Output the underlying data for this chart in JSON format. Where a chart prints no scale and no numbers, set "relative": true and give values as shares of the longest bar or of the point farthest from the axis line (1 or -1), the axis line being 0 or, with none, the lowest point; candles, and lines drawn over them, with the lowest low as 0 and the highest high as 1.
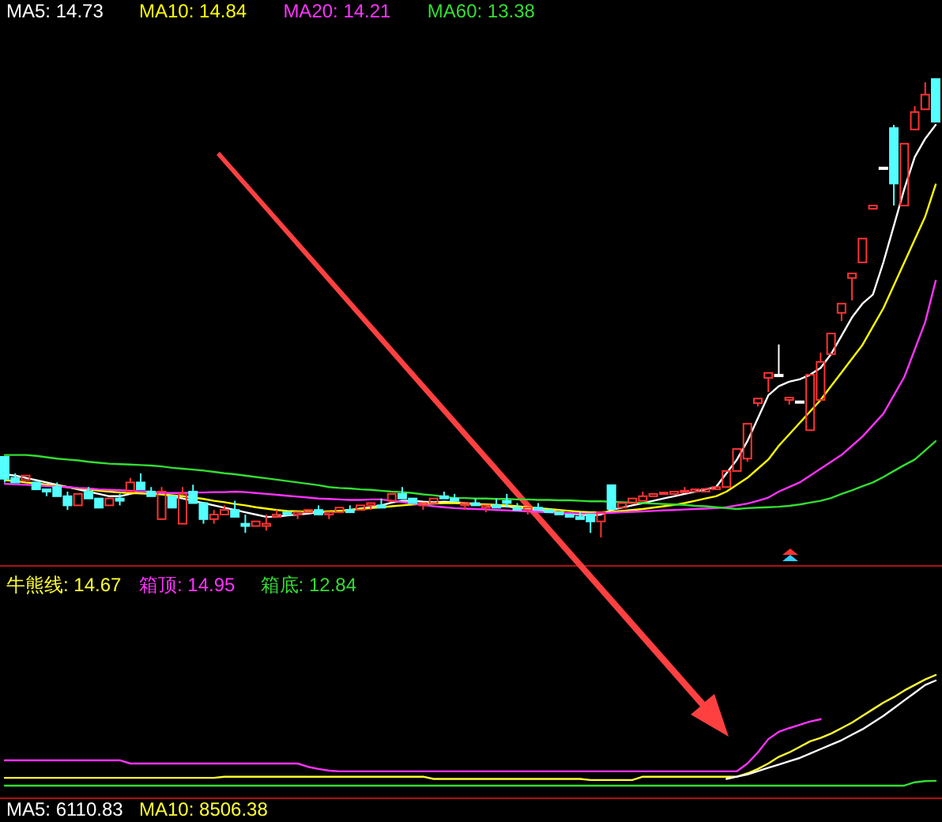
{
  "chart_data": [
    {
      "type": "candlestick",
      "relative": true,
      "legend": "top left",
      "categories": [
        null,
        null,
        null,
        null,
        null,
        null,
        null,
        null,
        null,
        null,
        null,
        null,
        null,
        null,
        null,
        null,
        null,
        null,
        null,
        null,
        null,
        null,
        null,
        null,
        null,
        null,
        null,
        null,
        null,
        null,
        null,
        null,
        null,
        null,
        null,
        null,
        null,
        null,
        null,
        null,
        null,
        null,
        null,
        null,
        null,
        null,
        null,
        null,
        null,
        null,
        null,
        null,
        null,
        null,
        null,
        null,
        null,
        null,
        null,
        null,
        null,
        null,
        null,
        null,
        null,
        null,
        null,
        null,
        null,
        null,
        null,
        null,
        null,
        null,
        null,
        null,
        null,
        null,
        null,
        null,
        null,
        null,
        null,
        null,
        null,
        null,
        null,
        null,
        null,
        null
      ],
      "ohlc": [
        [
          0.176,
          0.18,
          0.12,
          0.128
        ],
        [
          0.13,
          0.14,
          0.115,
          0.12
        ],
        [
          0.125,
          0.14,
          0.12,
          0.135
        ],
        [
          0.12,
          0.125,
          0.1,
          0.105
        ],
        [
          0.105,
          0.11,
          0.09,
          0.1
        ],
        [
          0.11,
          0.12,
          0.085,
          0.09
        ],
        [
          0.09,
          0.1,
          0.06,
          0.07
        ],
        [
          0.07,
          0.1,
          0.065,
          0.095
        ],
        [
          0.1,
          0.11,
          0.08,
          0.085
        ],
        [
          0.085,
          0.09,
          0.06,
          0.065
        ],
        [
          0.07,
          0.09,
          0.065,
          0.085
        ],
        [
          0.085,
          0.095,
          0.07,
          0.08
        ],
        [
          0.1,
          0.13,
          0.095,
          0.12
        ],
        [
          0.12,
          0.14,
          0.1,
          0.105
        ],
        [
          0.1,
          0.11,
          0.085,
          0.09
        ],
        [
          0.04,
          0.11,
          0.035,
          0.1
        ],
        [
          0.09,
          0.095,
          0.06,
          0.065
        ],
        [
          0.03,
          0.11,
          0.025,
          0.095
        ],
        [
          0.1,
          0.115,
          0.07,
          0.075
        ],
        [
          0.075,
          0.08,
          0.03,
          0.04
        ],
        [
          0.04,
          0.06,
          0.03,
          0.05
        ],
        [
          0.05,
          0.07,
          0.045,
          0.06
        ],
        [
          0.06,
          0.08,
          0.04,
          0.045
        ],
        [
          0.03,
          0.05,
          0.01,
          0.025
        ],
        [
          0.025,
          0.04,
          0.02,
          0.035
        ],
        [
          0.025,
          0.05,
          0.015,
          0.03
        ],
        [
          0.045,
          0.06,
          0.04,
          0.05
        ],
        [
          0.055,
          0.06,
          0.045,
          0.05
        ],
        [
          0.05,
          0.06,
          0.04,
          0.055
        ],
        [
          0.055,
          0.065,
          0.05,
          0.06
        ],
        [
          0.06,
          0.07,
          0.045,
          0.05
        ],
        [
          0.05,
          0.06,
          0.04,
          0.055
        ],
        [
          0.055,
          0.07,
          0.05,
          0.065
        ],
        [
          0.06,
          0.07,
          0.05,
          0.055
        ],
        [
          0.06,
          0.075,
          0.055,
          0.07
        ],
        [
          0.07,
          0.08,
          0.06,
          0.075
        ],
        [
          0.07,
          0.085,
          0.06,
          0.065
        ],
        [
          0.08,
          0.1,
          0.075,
          0.095
        ],
        [
          0.095,
          0.11,
          0.08,
          0.085
        ],
        [
          0.085,
          0.09,
          0.07,
          0.075
        ],
        [
          0.07,
          0.08,
          0.06,
          0.075
        ],
        [
          0.075,
          0.09,
          0.07,
          0.085
        ],
        [
          0.09,
          0.1,
          0.08,
          0.085
        ],
        [
          0.085,
          0.095,
          0.075,
          0.08
        ],
        [
          0.07,
          0.08,
          0.06,
          0.075
        ],
        [
          0.075,
          0.085,
          0.065,
          0.07
        ],
        [
          0.065,
          0.075,
          0.055,
          0.07
        ],
        [
          0.07,
          0.085,
          0.06,
          0.065
        ],
        [
          0.08,
          0.095,
          0.065,
          0.075
        ],
        [
          0.065,
          0.075,
          0.055,
          0.06
        ],
        [
          0.06,
          0.07,
          0.05,
          0.065
        ],
        [
          0.065,
          0.075,
          0.055,
          0.06
        ],
        [
          0.06,
          0.065,
          0.05,
          0.055
        ],
        [
          0.055,
          0.06,
          0.045,
          0.05
        ],
        [
          0.05,
          0.055,
          0.04,
          0.045
        ],
        [
          0.045,
          0.055,
          0.035,
          0.04
        ],
        [
          0.05,
          0.055,
          0.01,
          0.035
        ],
        [
          0.035,
          0.06,
          0.0,
          0.055
        ],
        [
          0.114,
          0.117,
          0.06,
          0.062
        ],
        [
          0.065,
          0.08,
          0.06,
          0.075
        ],
        [
          0.075,
          0.09,
          0.07,
          0.085
        ],
        [
          0.08,
          0.1,
          0.075,
          0.09
        ],
        [
          0.09,
          0.1,
          0.085,
          0.095
        ],
        [
          0.095,
          0.1,
          0.09,
          0.098
        ],
        [
          0.095,
          0.1,
          0.09,
          0.1
        ],
        [
          0.1,
          0.11,
          0.095,
          0.102
        ],
        [
          0.1,
          0.11,
          0.095,
          0.105
        ],
        [
          0.1,
          0.11,
          0.098,
          0.106
        ],
        [
          0.105,
          0.115,
          0.1,
          0.11
        ],
        [
          0.11,
          0.145,
          0.105,
          0.145
        ],
        [
          0.145,
          0.195,
          0.14,
          0.193
        ],
        [
          0.172,
          0.25,
          0.165,
          0.248
        ],
        [
          0.293,
          0.303,
          0.286,
          0.303
        ],
        [
          0.348,
          0.359,
          0.317,
          0.359
        ],
        [
          0.355,
          0.421,
          0.355,
          0.355
        ],
        [
          0.3,
          0.31,
          0.29,
          0.305
        ],
        [
          0.297,
          0.3,
          0.295,
          0.297
        ],
        [
          0.234,
          0.355,
          0.234,
          0.355
        ],
        [
          0.3,
          0.403,
          0.3,
          0.383
        ],
        [
          0.4,
          0.445,
          0.4,
          0.445
        ],
        [
          0.49,
          0.51,
          0.472,
          0.51
        ],
        [
          0.566,
          0.576,
          0.517,
          0.576
        ],
        [
          0.6,
          0.652,
          0.6,
          0.652
        ],
        [
          0.717,
          0.728,
          0.717,
          0.724
        ],
        [
          0.807,
          0.81,
          0.805,
          0.807
        ],
        [
          0.893,
          0.9,
          0.724,
          0.772
        ],
        [
          0.724,
          0.86,
          0.724,
          0.859
        ],
        [
          0.89,
          0.941,
          0.89,
          0.928
        ],
        [
          0.934,
          0.993,
          0.934,
          0.966
        ],
        [
          1,
          1,
          0.907,
          0.907
        ]
      ],
      "series": [
        {
          "type": "line",
          "name": "MA5: 14.73",
          "color": "#ffffff",
          "values": [
            0.138,
            0.135,
            0.13,
            0.125,
            0.12,
            0.115,
            0.11,
            0.105,
            0.1,
            0.095,
            0.09,
            0.09,
            0.095,
            0.1,
            0.1,
            0.095,
            0.09,
            0.085,
            0.08,
            0.075,
            0.07,
            0.065,
            0.06,
            0.055,
            0.05,
            0.045,
            0.045,
            0.048,
            0.05,
            0.052,
            0.055,
            0.055,
            0.058,
            0.06,
            0.063,
            0.066,
            0.07,
            0.076,
            0.08,
            0.08,
            0.078,
            0.077,
            0.078,
            0.077,
            0.075,
            0.073,
            0.07,
            0.068,
            0.068,
            0.065,
            0.063,
            0.06,
            0.058,
            0.055,
            0.052,
            0.05,
            0.048,
            0.05,
            0.06,
            0.065,
            0.07,
            0.075,
            0.08,
            0.085,
            0.09,
            0.095,
            0.1,
            0.105,
            0.11,
            0.14,
            0.17,
            0.21,
            0.26,
            0.31,
            0.33,
            0.34,
            0.345,
            0.355,
            0.37,
            0.4,
            0.44,
            0.48,
            0.51,
            0.53,
            0.6,
            0.68,
            0.76,
            0.83,
            0.87,
            0.9
          ]
        },
        {
          "type": "line",
          "name": "MA10: 14.84",
          "color": "#ffff00",
          "values": [
            0.125,
            0.123,
            0.12,
            0.118,
            0.115,
            0.112,
            0.11,
            0.107,
            0.105,
            0.102,
            0.1,
            0.098,
            0.097,
            0.096,
            0.095,
            0.094,
            0.092,
            0.09,
            0.087,
            0.084,
            0.08,
            0.077,
            0.073,
            0.07,
            0.066,
            0.063,
            0.06,
            0.058,
            0.057,
            0.056,
            0.056,
            0.057,
            0.058,
            0.06,
            0.062,
            0.064,
            0.066,
            0.068,
            0.07,
            0.072,
            0.073,
            0.074,
            0.075,
            0.075,
            0.074,
            0.073,
            0.072,
            0.071,
            0.07,
            0.068,
            0.066,
            0.064,
            0.062,
            0.06,
            0.058,
            0.056,
            0.055,
            0.055,
            0.056,
            0.058,
            0.06,
            0.062,
            0.065,
            0.068,
            0.071,
            0.075,
            0.08,
            0.085,
            0.09,
            0.1,
            0.115,
            0.13,
            0.15,
            0.17,
            0.2,
            0.225,
            0.25,
            0.275,
            0.3,
            0.33,
            0.36,
            0.39,
            0.42,
            0.46,
            0.5,
            0.55,
            0.6,
            0.65,
            0.7,
            0.77
          ]
        },
        {
          "type": "line",
          "name": "MA20: 14.21",
          "color": "#ff33ff",
          "values": [
            0.117,
            0.116,
            0.115,
            0.114,
            0.112,
            0.111,
            0.11,
            0.108,
            0.107,
            0.105,
            0.104,
            0.103,
            0.102,
            0.1,
            0.099,
            0.097,
            0.097,
            0.097,
            0.098,
            0.098,
            0.099,
            0.099,
            0.1,
            0.099,
            0.097,
            0.095,
            0.093,
            0.091,
            0.089,
            0.087,
            0.085,
            0.084,
            0.083,
            0.082,
            0.082,
            0.083,
            0.083,
            0.08,
            0.077,
            0.074,
            0.071,
            0.068,
            0.066,
            0.064,
            0.063,
            0.062,
            0.061,
            0.06,
            0.059,
            0.058,
            0.057,
            0.056,
            0.055,
            0.054,
            0.053,
            0.052,
            0.052,
            0.053,
            0.054,
            0.055,
            0.056,
            0.057,
            0.058,
            0.059,
            0.06,
            0.061,
            0.062,
            0.063,
            0.064,
            0.066,
            0.07,
            0.074,
            0.08,
            0.087,
            0.1,
            0.11,
            0.12,
            0.135,
            0.15,
            0.165,
            0.18,
            0.2,
            0.22,
            0.245,
            0.27,
            0.31,
            0.35,
            0.41,
            0.47,
            0.56
          ]
        },
        {
          "type": "line",
          "name": "MA60: 13.38",
          "color": "#33dd33",
          "values": [
            0.18,
            0.18,
            0.18,
            0.178,
            0.175,
            0.172,
            0.17,
            0.168,
            0.165,
            0.163,
            0.161,
            0.16,
            0.159,
            0.158,
            0.157,
            0.155,
            0.152,
            0.15,
            0.148,
            0.146,
            0.143,
            0.14,
            0.138,
            0.135,
            0.132,
            0.129,
            0.126,
            0.123,
            0.12,
            0.117,
            0.114,
            0.11,
            0.108,
            0.107,
            0.105,
            0.104,
            0.102,
            0.1,
            0.099,
            0.097,
            0.094,
            0.092,
            0.089,
            0.086,
            0.086,
            0.085,
            0.085,
            0.084,
            0.084,
            0.083,
            0.083,
            0.082,
            0.082,
            0.081,
            0.081,
            0.08,
            0.079,
            0.079,
            0.078,
            0.077,
            0.076,
            0.075,
            0.074,
            0.073,
            0.072,
            0.071,
            0.069,
            0.068,
            0.066,
            0.064,
            0.062,
            0.064,
            0.065,
            0.066,
            0.067,
            0.069,
            0.072,
            0.076,
            0.08,
            0.086,
            0.095,
            0.103,
            0.112,
            0.12,
            0.132,
            0.145,
            0.158,
            0.17,
            0.19,
            0.21
          ]
        }
      ]
    },
    {
      "type": "line",
      "relative": true,
      "legend": "top left",
      "categories": [
        null,
        null,
        null,
        null,
        null,
        null,
        null,
        null,
        null,
        null,
        null,
        null,
        null,
        null,
        null,
        null,
        null,
        null,
        null,
        null,
        null,
        null,
        null,
        null,
        null,
        null,
        null,
        null,
        null,
        null,
        null,
        null,
        null,
        null,
        null,
        null,
        null,
        null,
        null,
        null,
        null,
        null,
        null,
        null,
        null,
        null,
        null,
        null,
        null,
        null,
        null,
        null,
        null,
        null,
        null,
        null,
        null,
        null,
        null,
        null,
        null,
        null,
        null,
        null,
        null,
        null,
        null,
        null,
        null,
        null,
        null,
        null,
        null,
        null,
        null,
        null,
        null,
        null,
        null,
        null,
        null,
        null,
        null,
        null,
        null,
        null,
        null,
        null,
        null,
        null
      ],
      "series": [
        {
          "name": "牛熊线: 14.67",
          "color": "#ffff33",
          "values": [
            0.166,
            0.166,
            0.166,
            0.166,
            0.166,
            0.166,
            0.166,
            0.166,
            0.166,
            0.166,
            0.166,
            0.166,
            0.166,
            0.166,
            0.166,
            0.166,
            0.166,
            0.166,
            0.166,
            0.166,
            0.166,
            0.175,
            0.175,
            0.175,
            0.175,
            0.175,
            0.175,
            0.175,
            0.175,
            0.175,
            0.175,
            0.175,
            0.175,
            0.175,
            0.175,
            0.175,
            0.175,
            0.175,
            0.175,
            0.175,
            0.175,
            0.157,
            0.157,
            0.157,
            0.157,
            0.157,
            0.157,
            0.157,
            0.157,
            0.157,
            0.157,
            0.157,
            0.157,
            0.157,
            0.157,
            0.157,
            0.148,
            0.148,
            0.148,
            0.148,
            0.148,
            0.175,
            0.175,
            0.175,
            0.175,
            0.175,
            0.175,
            0.175,
            0.175,
            0.175,
            0.175,
            0.202,
            0.238,
            0.282,
            0.336,
            0.372,
            0.417,
            0.462,
            0.489,
            0.525,
            0.569,
            0.614,
            0.668,
            0.722,
            0.776,
            0.821,
            0.874,
            0.919,
            0.964,
            1
          ]
        },
        {
          "name": "箱顶: 14.95",
          "color": "#ff33ff",
          "values": [
            0.308,
            0.308,
            0.308,
            0.308,
            0.308,
            0.308,
            0.308,
            0.308,
            0.308,
            0.308,
            0.308,
            0.308,
            0.282,
            0.282,
            0.282,
            0.282,
            0.282,
            0.282,
            0.282,
            0.282,
            0.282,
            0.282,
            0.282,
            0.282,
            0.282,
            0.282,
            0.282,
            0.282,
            0.282,
            0.255,
            0.238,
            0.224,
            0.219,
            0.219,
            0.219,
            0.219,
            0.219,
            0.219,
            0.219,
            0.219,
            0.219,
            0.219,
            0.219,
            0.219,
            0.219,
            0.219,
            0.219,
            0.219,
            0.219,
            0.219,
            0.219,
            0.219,
            0.219,
            0.219,
            0.219,
            0.219,
            0.219,
            0.219,
            0.219,
            0.219,
            0.219,
            0.219,
            0.219,
            0.219,
            0.219,
            0.219,
            0.219,
            0.219,
            0.219,
            0.219,
            0.219,
            0.282,
            0.372,
            0.48,
            0.539,
            0.569,
            0.596,
            0.623,
            0.641,
            null,
            null,
            null,
            null,
            null,
            null,
            null,
            null,
            null,
            null,
            null
          ]
        },
        {
          "name": "箱底: 12.84",
          "color": "#33dd33",
          "values": [
            0.103,
            0.103,
            0.103,
            0.103,
            0.103,
            0.103,
            0.103,
            0.103,
            0.103,
            0.103,
            0.103,
            0.103,
            0.103,
            0.103,
            0.103,
            0.103,
            0.103,
            0.103,
            0.103,
            0.103,
            0.103,
            0.103,
            0.103,
            0.103,
            0.103,
            0.103,
            0.103,
            0.103,
            0.103,
            0.103,
            0.103,
            0.103,
            0.103,
            0.103,
            0.103,
            0.103,
            0.103,
            0.103,
            0.103,
            0.103,
            0.103,
            0.103,
            0.103,
            0.103,
            0.103,
            0.103,
            0.103,
            0.103,
            0.103,
            0.103,
            0.103,
            0.103,
            0.103,
            0.103,
            0.103,
            0.103,
            0.103,
            0.103,
            0.103,
            0.103,
            0.103,
            0.103,
            0.103,
            0.103,
            0.103,
            0.103,
            0.103,
            0.103,
            0.103,
            0.103,
            0.103,
            0.103,
            0.103,
            0.103,
            0.103,
            0.103,
            0.103,
            0.103,
            0.103,
            0.103,
            0.103,
            0.103,
            0.103,
            0.103,
            0.103,
            0.103,
            0.103,
            0.13,
            0.139,
            0.142
          ]
        },
        {
          "color": "#ffffff",
          "values": [
            null,
            null,
            null,
            null,
            null,
            null,
            null,
            null,
            null,
            null,
            null,
            null,
            null,
            null,
            null,
            null,
            null,
            null,
            null,
            null,
            null,
            null,
            null,
            null,
            null,
            null,
            null,
            null,
            null,
            null,
            null,
            null,
            null,
            null,
            null,
            null,
            null,
            null,
            null,
            null,
            null,
            null,
            null,
            null,
            null,
            null,
            null,
            null,
            null,
            null,
            null,
            null,
            null,
            null,
            null,
            null,
            null,
            null,
            null,
            null,
            null,
            null,
            null,
            null,
            null,
            null,
            null,
            null,
            null,
            0.157,
            0.175,
            0.193,
            0.22,
            0.247,
            0.273,
            0.3,
            0.327,
            0.363,
            0.399,
            0.435,
            0.471,
            0.516,
            0.56,
            0.614,
            0.668,
            0.731,
            0.794,
            0.856,
            0.919,
            0.955
          ]
        }
      ],
      "annotations": [
        "MA5: 6110.83",
        "MA10: 8506.38"
      ]
    }
  ]
}
